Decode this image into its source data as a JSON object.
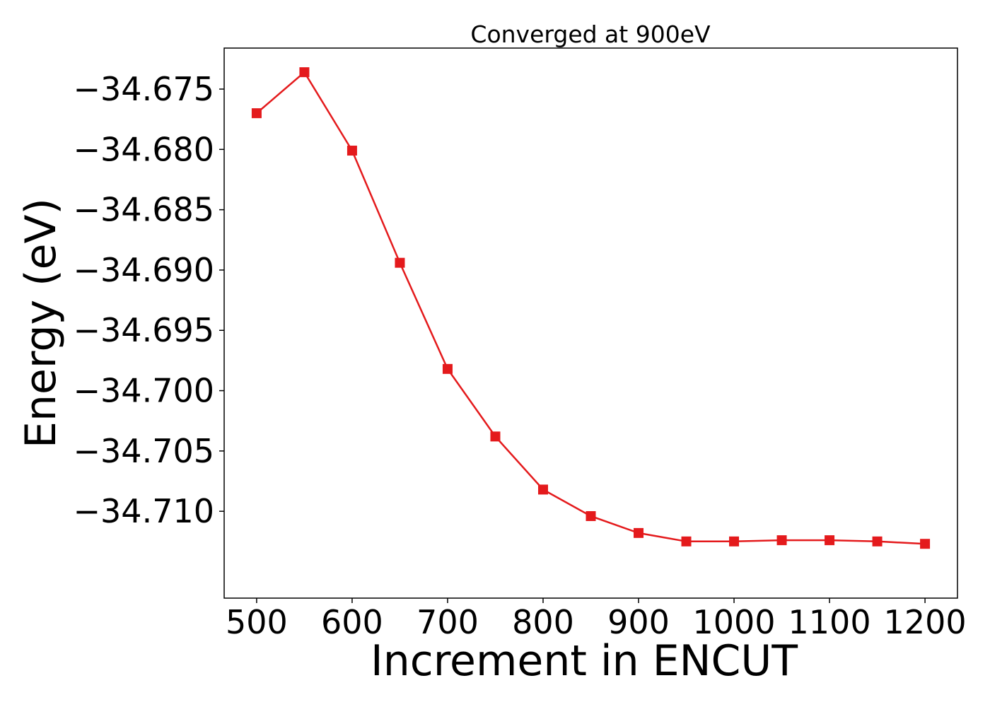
{
  "chart_data": {
    "type": "line",
    "title": "Converged at 900eV",
    "xlabel": "Increment in ENCUT",
    "ylabel": "Energy (eV)",
    "x": [
      500,
      550,
      600,
      650,
      700,
      750,
      800,
      850,
      900,
      950,
      1000,
      1050,
      1100,
      1150,
      1200
    ],
    "series": [
      {
        "values": [
          -34.677,
          -34.6736,
          -34.6801,
          -34.6894,
          -34.6982,
          -34.7038,
          -34.7082,
          -34.7104,
          -34.7118,
          -34.7125,
          -34.7125,
          -34.7124,
          -34.7124,
          -34.7125,
          -34.7127
        ],
        "color": "#e41a1c",
        "marker": "square"
      }
    ],
    "xlim": [
      466,
      1234
    ],
    "ylim": [
      -34.7172,
      -34.6716
    ],
    "x_ticks": [
      500,
      600,
      700,
      800,
      900,
      1000,
      1100,
      1200
    ],
    "x_tick_labels": [
      "500",
      "600",
      "700",
      "800",
      "900",
      "1000",
      "1100",
      "1200"
    ],
    "y_ticks": [
      -34.675,
      -34.68,
      -34.685,
      -34.69,
      -34.695,
      -34.7,
      -34.705,
      -34.71
    ],
    "y_tick_labels": [
      "−34.675",
      "−34.680",
      "−34.685",
      "−34.690",
      "−34.695",
      "−34.700",
      "−34.705",
      "−34.710"
    ],
    "grid": false,
    "legend": "none"
  }
}
